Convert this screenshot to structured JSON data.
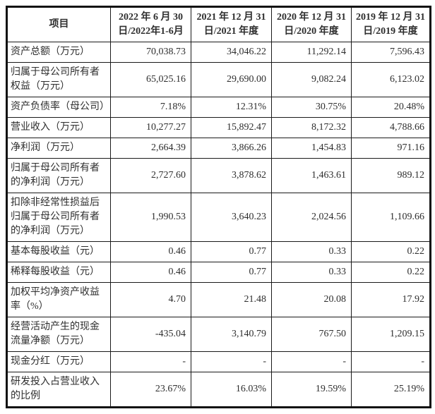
{
  "table": {
    "header": {
      "item_label": "项目",
      "periods": [
        {
          "line1": "2022 年 6 月 30",
          "line2": "日/2022年1-6月"
        },
        {
          "line1": "2021 年 12 月 31",
          "line2": "日/2021 年度"
        },
        {
          "line1": "2020 年 12 月 31",
          "line2": "日/2020 年度"
        },
        {
          "line1": "2019 年 12 月 31",
          "line2": "日/2019 年度"
        }
      ]
    },
    "rows": [
      {
        "label": "资产总额（万元）",
        "values": [
          "70,038.73",
          "34,046.22",
          "11,292.14",
          "7,596.43"
        ]
      },
      {
        "label": "归属于母公司所有者权益（万元）",
        "values": [
          "65,025.16",
          "29,690.00",
          "9,082.24",
          "6,123.02"
        ]
      },
      {
        "label": "资产负债率（母公司）",
        "values": [
          "7.18%",
          "12.31%",
          "30.75%",
          "20.48%"
        ]
      },
      {
        "label": "营业收入（万元）",
        "values": [
          "10,277.27",
          "15,892.47",
          "8,172.32",
          "4,788.66"
        ]
      },
      {
        "label": "净利润（万元）",
        "values": [
          "2,664.39",
          "3,866.26",
          "1,454.83",
          "971.16"
        ]
      },
      {
        "label": "归属于母公司所有者的净利润（万元）",
        "values": [
          "2,727.60",
          "3,878.62",
          "1,463.61",
          "989.12"
        ]
      },
      {
        "label": "扣除非经常性损益后归属于母公司所有者的净利润（万元）",
        "values": [
          "1,990.53",
          "3,640.23",
          "2,024.56",
          "1,109.66"
        ]
      },
      {
        "label": "基本每股收益（元）",
        "values": [
          "0.46",
          "0.77",
          "0.33",
          "0.22"
        ]
      },
      {
        "label": "稀释每股收益（元）",
        "values": [
          "0.46",
          "0.77",
          "0.33",
          "0.22"
        ]
      },
      {
        "label": "加权平均净资产收益率（%）",
        "values": [
          "4.70",
          "21.48",
          "20.08",
          "17.92"
        ]
      },
      {
        "label": "经营活动产生的现金流量净额（万元）",
        "values": [
          "-435.04",
          "3,140.79",
          "767.50",
          "1,209.15"
        ]
      },
      {
        "label": "现金分红（万元）",
        "values": [
          "-",
          "-",
          "-",
          "-"
        ]
      },
      {
        "label": "研发投入占营业收入的比例",
        "values": [
          "23.67%",
          "16.03%",
          "19.59%",
          "25.19%"
        ]
      }
    ]
  },
  "colors": {
    "text": "#2e2e2e",
    "border": "#1a1a1a",
    "background": "#ffffff"
  },
  "chart_data": {
    "type": "table",
    "title": "主要财务数据表",
    "categories": [
      "2022年6月30日/2022年1-6月",
      "2021年12月31日/2021年度",
      "2020年12月31日/2020年度",
      "2019年12月31日/2019年度"
    ],
    "series": [
      {
        "name": "资产总额（万元）",
        "values": [
          70038.73,
          34046.22,
          11292.14,
          7596.43
        ]
      },
      {
        "name": "归属于母公司所有者权益（万元）",
        "values": [
          65025.16,
          29690.0,
          9082.24,
          6123.02
        ]
      },
      {
        "name": "资产负债率（母公司）%",
        "values": [
          7.18,
          12.31,
          30.75,
          20.48
        ]
      },
      {
        "name": "营业收入（万元）",
        "values": [
          10277.27,
          15892.47,
          8172.32,
          4788.66
        ]
      },
      {
        "name": "净利润（万元）",
        "values": [
          2664.39,
          3866.26,
          1454.83,
          971.16
        ]
      },
      {
        "name": "归属于母公司所有者的净利润（万元）",
        "values": [
          2727.6,
          3878.62,
          1463.61,
          989.12
        ]
      },
      {
        "name": "扣除非经常性损益后归属于母公司所有者的净利润（万元）",
        "values": [
          1990.53,
          3640.23,
          2024.56,
          1109.66
        ]
      },
      {
        "name": "基本每股收益（元）",
        "values": [
          0.46,
          0.77,
          0.33,
          0.22
        ]
      },
      {
        "name": "稀释每股收益（元）",
        "values": [
          0.46,
          0.77,
          0.33,
          0.22
        ]
      },
      {
        "name": "加权平均净资产收益率（%）",
        "values": [
          4.7,
          21.48,
          20.08,
          17.92
        ]
      },
      {
        "name": "经营活动产生的现金流量净额（万元）",
        "values": [
          -435.04,
          3140.79,
          767.5,
          1209.15
        ]
      },
      {
        "name": "现金分红（万元）",
        "values": [
          null,
          null,
          null,
          null
        ]
      },
      {
        "name": "研发投入占营业收入的比例 %",
        "values": [
          23.67,
          16.03,
          19.59,
          25.19
        ]
      }
    ]
  }
}
